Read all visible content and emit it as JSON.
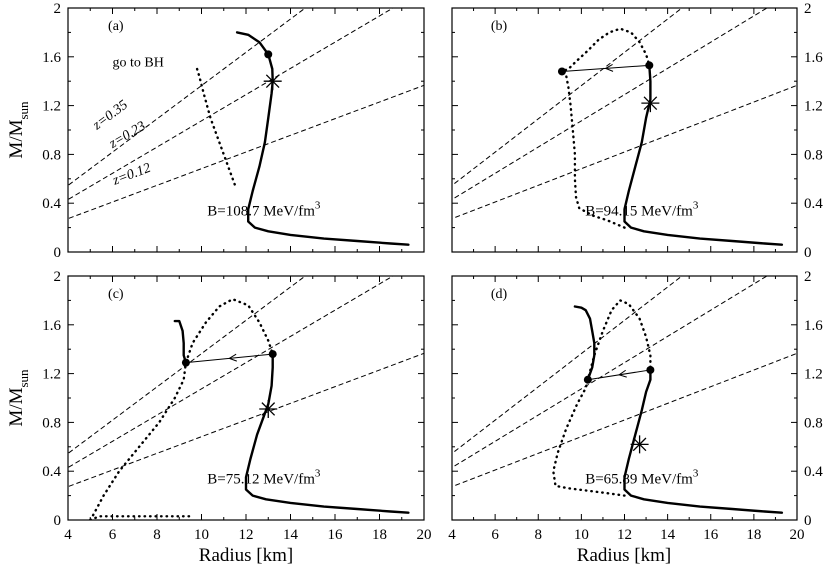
{
  "chart_data": {
    "type": "line",
    "title": "",
    "xlabel": "Radius [km]",
    "ylabel": "M/M",
    "ylabel_sub": "sun",
    "xlim": [
      4,
      20
    ],
    "ylim": [
      0,
      2
    ],
    "x_ticks": [
      "4",
      "6",
      "8",
      "10",
      "12",
      "14",
      "16",
      "18",
      "20"
    ],
    "y_ticks": [
      "0",
      "0.4",
      "0.8",
      "1.2",
      "1.6",
      "2"
    ],
    "z_lines": [
      {
        "label": "z=0.35",
        "slope": 0.1364
      },
      {
        "label": "z=0.23",
        "slope": 0.1075
      },
      {
        "label": "z=0.12",
        "slope": 0.0683
      }
    ],
    "panels": [
      {
        "id": "a",
        "label": "(a)",
        "note": "go to BH",
        "b_text": "B=108.7 MeV/fm",
        "b_sup": "3",
        "show_z_labels": true,
        "solid": [
          [
            19.3,
            0.06
          ],
          [
            18.5,
            0.07
          ],
          [
            17,
            0.09
          ],
          [
            15.5,
            0.11
          ],
          [
            14,
            0.14
          ],
          [
            13,
            0.17
          ],
          [
            12.4,
            0.2
          ],
          [
            12.1,
            0.25
          ],
          [
            12.1,
            0.35
          ],
          [
            12.3,
            0.5
          ],
          [
            12.6,
            0.7
          ],
          [
            12.85,
            0.9
          ],
          [
            13.0,
            1.1
          ],
          [
            13.15,
            1.3
          ],
          [
            13.2,
            1.4
          ],
          [
            13.18,
            1.5
          ],
          [
            13.0,
            1.62
          ],
          [
            12.6,
            1.72
          ],
          [
            12.1,
            1.78
          ],
          [
            11.6,
            1.8
          ]
        ],
        "dotted": [
          [
            9.8,
            1.5
          ],
          [
            9.9,
            1.44
          ],
          [
            10.1,
            1.3
          ],
          [
            10.4,
            1.1
          ],
          [
            10.8,
            0.9
          ],
          [
            11.2,
            0.7
          ],
          [
            11.5,
            0.55
          ]
        ],
        "dots": [
          [
            13.0,
            1.62
          ]
        ],
        "star": [
          13.2,
          1.4
        ],
        "arrow": null
      },
      {
        "id": "b",
        "label": "(b)",
        "note": "",
        "b_text": "B=94.15 MeV/fm",
        "b_sup": "3",
        "show_z_labels": false,
        "solid": [
          [
            19.3,
            0.06
          ],
          [
            18.5,
            0.07
          ],
          [
            17,
            0.09
          ],
          [
            15.5,
            0.11
          ],
          [
            14,
            0.14
          ],
          [
            12.9,
            0.17
          ],
          [
            12.3,
            0.2
          ],
          [
            12.0,
            0.25
          ],
          [
            12.0,
            0.35
          ],
          [
            12.2,
            0.5
          ],
          [
            12.5,
            0.7
          ],
          [
            12.8,
            0.9
          ],
          [
            13.0,
            1.1
          ],
          [
            13.2,
            1.25
          ],
          [
            13.2,
            1.4
          ],
          [
            13.15,
            1.53
          ]
        ],
        "dotted": [
          [
            12.0,
            0.2
          ],
          [
            11.2,
            0.26
          ],
          [
            10.5,
            0.3
          ],
          [
            9.9,
            0.36
          ],
          [
            9.75,
            0.45
          ],
          [
            9.7,
            0.6
          ],
          [
            9.7,
            0.8
          ],
          [
            9.6,
            1.0
          ],
          [
            9.5,
            1.2
          ],
          [
            9.4,
            1.35
          ],
          [
            9.3,
            1.44
          ],
          [
            9.1,
            1.48
          ],
          [
            9.4,
            1.5
          ],
          [
            9.8,
            1.57
          ],
          [
            10.3,
            1.65
          ],
          [
            10.8,
            1.74
          ],
          [
            11.3,
            1.8
          ],
          [
            11.8,
            1.83
          ],
          [
            12.3,
            1.8
          ],
          [
            12.7,
            1.72
          ],
          [
            13.0,
            1.62
          ],
          [
            13.15,
            1.53
          ]
        ],
        "dots": [
          [
            13.15,
            1.53
          ],
          [
            9.1,
            1.48
          ]
        ],
        "star": [
          13.2,
          1.22
        ],
        "arrow": {
          "from": [
            13.15,
            1.53
          ],
          "to": [
            9.1,
            1.48
          ]
        }
      },
      {
        "id": "c",
        "label": "(c)",
        "note": "",
        "b_text": "B=75.12 MeV/fm",
        "b_sup": "3",
        "show_z_labels": false,
        "solid": [
          [
            19.3,
            0.06
          ],
          [
            18.5,
            0.07
          ],
          [
            17,
            0.09
          ],
          [
            15.5,
            0.11
          ],
          [
            14,
            0.14
          ],
          [
            12.9,
            0.17
          ],
          [
            12.3,
            0.2
          ],
          [
            12.0,
            0.25
          ],
          [
            12.0,
            0.35
          ],
          [
            12.2,
            0.5
          ],
          [
            12.5,
            0.7
          ],
          [
            12.8,
            0.85
          ],
          [
            13.0,
            0.95
          ],
          [
            13.15,
            1.1
          ],
          [
            13.2,
            1.25
          ],
          [
            13.2,
            1.36
          ]
        ],
        "solid2": [
          [
            9.3,
            1.29
          ],
          [
            9.2,
            1.35
          ],
          [
            9.2,
            1.45
          ],
          [
            9.15,
            1.55
          ],
          [
            9.0,
            1.63
          ],
          [
            8.8,
            1.63
          ]
        ],
        "dotted": [
          [
            5.0,
            0.0
          ],
          [
            5.1,
            0.03
          ],
          [
            5.6,
            0.2
          ],
          [
            6.3,
            0.4
          ],
          [
            7.2,
            0.6
          ],
          [
            8.1,
            0.8
          ],
          [
            8.8,
            1.0
          ],
          [
            9.2,
            1.15
          ],
          [
            9.3,
            1.29
          ],
          [
            9.6,
            1.45
          ],
          [
            10.2,
            1.62
          ],
          [
            10.8,
            1.75
          ],
          [
            11.4,
            1.81
          ],
          [
            12.1,
            1.76
          ],
          [
            12.6,
            1.62
          ],
          [
            13.0,
            1.47
          ],
          [
            13.2,
            1.36
          ]
        ],
        "dotted2": [
          [
            5.0,
            0.0
          ],
          [
            5.4,
            0.03
          ],
          [
            6.5,
            0.03
          ],
          [
            7.5,
            0.03
          ],
          [
            8.5,
            0.03
          ],
          [
            9.5,
            0.03
          ]
        ],
        "dots": [
          [
            13.2,
            1.36
          ],
          [
            9.3,
            1.29
          ]
        ],
        "star": [
          13.0,
          0.91
        ],
        "arrow": {
          "from": [
            13.2,
            1.36
          ],
          "to": [
            9.3,
            1.29
          ]
        }
      },
      {
        "id": "d",
        "label": "(d)",
        "note": "",
        "b_text": "B=65.89 MeV/fm",
        "b_sup": "3",
        "show_z_labels": false,
        "solid": [
          [
            19.3,
            0.06
          ],
          [
            18.5,
            0.07
          ],
          [
            17,
            0.09
          ],
          [
            15.5,
            0.11
          ],
          [
            14,
            0.14
          ],
          [
            12.9,
            0.17
          ],
          [
            12.3,
            0.2
          ],
          [
            12.0,
            0.25
          ],
          [
            12.0,
            0.35
          ],
          [
            12.2,
            0.5
          ],
          [
            12.5,
            0.7
          ],
          [
            12.8,
            0.9
          ],
          [
            13.0,
            1.05
          ],
          [
            13.2,
            1.15
          ],
          [
            13.2,
            1.23
          ]
        ],
        "solid2": [
          [
            10.3,
            1.15
          ],
          [
            10.5,
            1.25
          ],
          [
            10.6,
            1.35
          ],
          [
            10.6,
            1.45
          ],
          [
            10.5,
            1.55
          ],
          [
            10.4,
            1.65
          ],
          [
            10.2,
            1.72
          ],
          [
            10.0,
            1.74
          ],
          [
            9.7,
            1.75
          ]
        ],
        "dotted": [
          [
            12.0,
            0.2
          ],
          [
            11.2,
            0.22
          ],
          [
            10.3,
            0.24
          ],
          [
            9.4,
            0.26
          ],
          [
            8.8,
            0.28
          ],
          [
            8.7,
            0.4
          ],
          [
            8.9,
            0.55
          ],
          [
            9.3,
            0.75
          ],
          [
            9.8,
            0.95
          ],
          [
            10.2,
            1.08
          ],
          [
            10.3,
            1.15
          ],
          [
            10.6,
            1.35
          ],
          [
            11.0,
            1.55
          ],
          [
            11.4,
            1.72
          ],
          [
            11.8,
            1.8
          ],
          [
            12.2,
            1.77
          ],
          [
            12.7,
            1.65
          ],
          [
            13.0,
            1.5
          ],
          [
            13.2,
            1.35
          ],
          [
            13.2,
            1.23
          ]
        ],
        "dots": [
          [
            13.2,
            1.23
          ],
          [
            10.3,
            1.15
          ]
        ],
        "star": [
          12.7,
          0.62
        ],
        "arrow": {
          "from": [
            13.2,
            1.23
          ],
          "to": [
            10.3,
            1.15
          ]
        }
      }
    ]
  }
}
